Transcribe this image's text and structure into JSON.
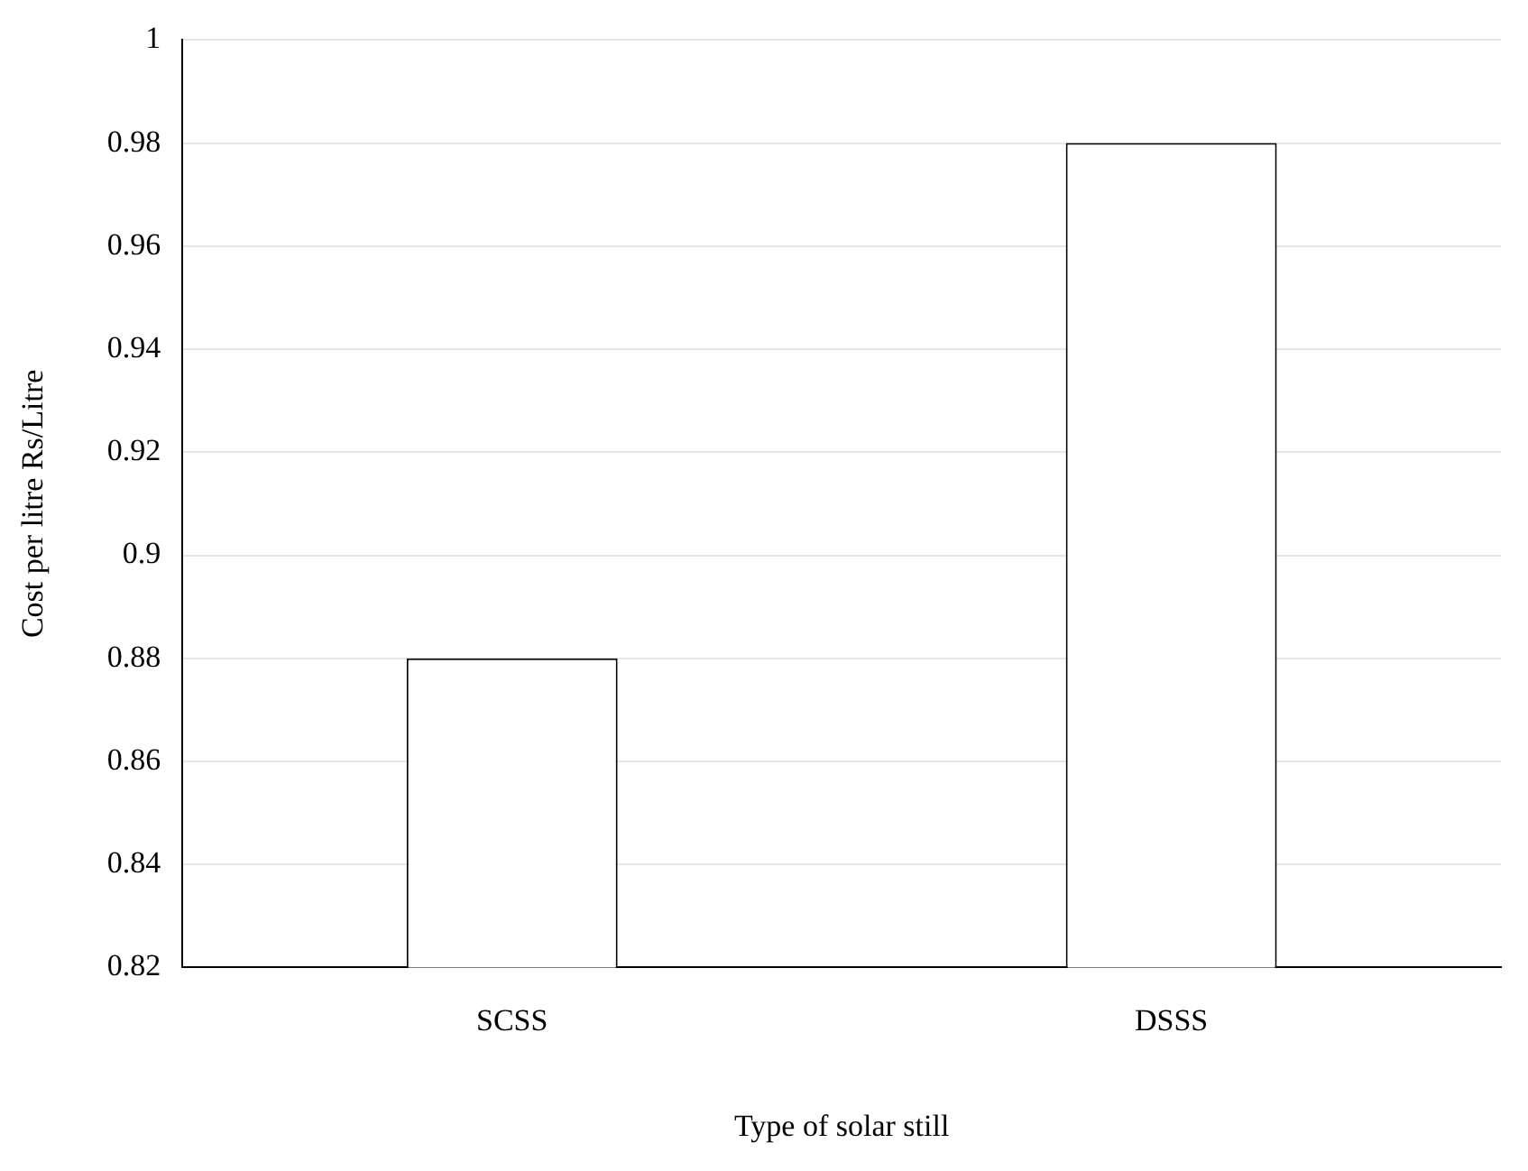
{
  "chart_data": {
    "type": "bar",
    "xlabel": "Type of solar still",
    "ylabel": "Cost per litre Rs/Litre",
    "categories": [
      "SCSS",
      "DSSS"
    ],
    "values": [
      0.88,
      0.98
    ],
    "color": "#ffffff",
    "ylim": [
      0.82,
      1
    ],
    "yticks": [
      0.82,
      0.84,
      0.86,
      0.88,
      0.9,
      0.92,
      0.94,
      0.96,
      0.98,
      1
    ],
    "grid": "y"
  }
}
